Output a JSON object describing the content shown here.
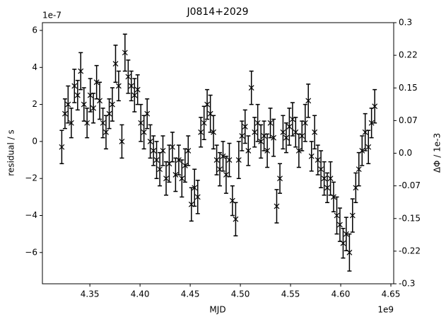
{
  "chart_data": {
    "type": "errorbar",
    "title": "J0814+2029",
    "x_label": "MJD",
    "y_label": "residual / s",
    "y2_label": "ΔΦ / 1e-3",
    "x_offset": "1e9",
    "y_offset": "1e-7",
    "xlim": [
      4.3027,
      4.6528
    ],
    "ylim": [
      -7.69,
      6.42
    ],
    "y2lim": [
      -0.3,
      0.3
    ],
    "xticks": [
      4.35,
      {
        "value": 4.4,
        "label": "4.40"
      },
      4.45,
      {
        "value": 4.5,
        "label": "4.50"
      },
      4.55,
      {
        "value": 4.6,
        "label": "4.60"
      },
      4.65
    ],
    "yticks": [
      {
        "value": -6,
        "label": "−6"
      },
      {
        "value": -4,
        "label": "−4"
      },
      {
        "value": -2,
        "label": "−2"
      },
      0,
      2,
      4,
      6
    ],
    "y2ticks": [
      {
        "value": -0.3,
        "label": "-0.3"
      },
      {
        "value": -0.225,
        "label": "-0.22"
      },
      {
        "value": -0.15,
        "label": "-0.15"
      },
      {
        "value": -0.075,
        "label": "-0.07"
      },
      {
        "value": 0,
        "label": "0.0"
      },
      {
        "value": 0.075,
        "label": "0.07"
      },
      0.15,
      {
        "value": 0.225,
        "label": "0.22"
      },
      0.3
    ],
    "series": [
      {
        "color": "#000000",
        "marker": "x",
        "x": [
          4.322,
          4.3252,
          4.3283,
          4.3315,
          4.3346,
          4.3378,
          4.3409,
          4.3441,
          4.3472,
          4.3504,
          4.3535,
          4.3567,
          4.3598,
          4.363,
          4.3661,
          4.3693,
          4.3724,
          4.3756,
          4.3787,
          4.3819,
          4.385,
          4.3882,
          4.3913,
          4.3945,
          4.3976,
          4.4008,
          4.4039,
          4.4071,
          4.4102,
          4.4134,
          4.4165,
          4.4197,
          4.4228,
          4.426,
          4.4291,
          4.4323,
          4.4354,
          4.4386,
          4.4417,
          4.4449,
          4.448,
          4.4512,
          4.4543,
          4.4575,
          4.4606,
          4.4638,
          4.4669,
          4.4701,
          4.4732,
          4.4764,
          4.4795,
          4.4827,
          4.4858,
          4.489,
          4.4921,
          4.4953,
          4.4984,
          4.5016,
          4.5047,
          4.5079,
          4.511,
          4.5142,
          4.5173,
          4.5205,
          4.5236,
          4.5268,
          4.5299,
          4.5331,
          4.5362,
          4.5394,
          4.5425,
          4.5457,
          4.5488,
          4.552,
          4.5551,
          4.5583,
          4.5614,
          4.5646,
          4.5677,
          4.5709,
          4.574,
          4.5772,
          4.5803,
          4.5835,
          4.5866,
          4.5898,
          4.5929,
          4.5961,
          4.5992,
          4.6024,
          4.6055,
          4.6087,
          4.6118,
          4.615,
          4.6181,
          4.6213,
          4.6244,
          4.6276,
          4.6307,
          4.6339
        ],
        "values": [
          -0.3,
          1.5,
          2.0,
          1.0,
          3.0,
          2.5,
          3.8,
          2.0,
          1.0,
          2.5,
          1.8,
          3.2,
          2.2,
          1.0,
          0.5,
          1.5,
          2.0,
          4.2,
          3.0,
          0.0,
          4.8,
          3.5,
          3.0,
          2.5,
          2.8,
          1.0,
          0.5,
          1.5,
          0.0,
          -0.5,
          -1.0,
          -1.5,
          -0.5,
          -2.0,
          -1.2,
          -0.3,
          -1.8,
          -1.0,
          -2.0,
          -1.3,
          -0.5,
          -3.4,
          -2.5,
          -3.0,
          0.5,
          1.0,
          2.0,
          1.5,
          0.5,
          -1.0,
          -1.5,
          -0.8,
          -1.8,
          -1.0,
          -3.2,
          -4.2,
          -1.0,
          0.3,
          0.8,
          -0.5,
          2.9,
          0.5,
          1.0,
          0.0,
          0.3,
          -0.5,
          1.0,
          0.2,
          -3.5,
          -2.0,
          0.5,
          0.2,
          0.8,
          1.2,
          0.5,
          -0.5,
          0.3,
          1.0,
          2.2,
          -0.8,
          0.5,
          -1.0,
          -1.5,
          -2.0,
          -2.5,
          -2.0,
          -3.0,
          -4.0,
          -4.5,
          -5.5,
          -5.0,
          -6.0,
          -4.0,
          -2.5,
          -1.5,
          -0.5,
          0.5,
          -0.3,
          1.0,
          1.9
        ],
        "errors": [
          0.9,
          0.8,
          1.0,
          0.8,
          0.9,
          0.8,
          1.0,
          0.9,
          0.8,
          0.9,
          0.8,
          0.9,
          1.0,
          0.8,
          0.9,
          0.8,
          0.9,
          1.0,
          0.8,
          0.9,
          1.0,
          0.9,
          0.8,
          0.9,
          0.8,
          1.0,
          0.9,
          0.8,
          0.9,
          0.8,
          1.0,
          0.9,
          0.8,
          0.9,
          1.0,
          0.8,
          0.9,
          0.8,
          1.0,
          0.9,
          0.8,
          0.9,
          1.0,
          0.9,
          0.8,
          0.9,
          0.8,
          1.0,
          0.9,
          0.8,
          0.9,
          0.8,
          1.0,
          0.9,
          0.8,
          0.9,
          1.0,
          0.8,
          0.9,
          0.8,
          0.9,
          0.8,
          1.0,
          0.9,
          0.8,
          0.9,
          0.8,
          1.0,
          0.9,
          0.8,
          0.9,
          0.8,
          1.0,
          0.9,
          0.8,
          0.9,
          0.8,
          1.0,
          0.9,
          0.8,
          0.9,
          0.8,
          1.0,
          0.9,
          0.8,
          0.9,
          0.8,
          1.0,
          0.9,
          0.8,
          0.9,
          1.0,
          0.9,
          0.8,
          0.9,
          0.8,
          1.0,
          0.9,
          0.8,
          0.9
        ]
      }
    ]
  }
}
